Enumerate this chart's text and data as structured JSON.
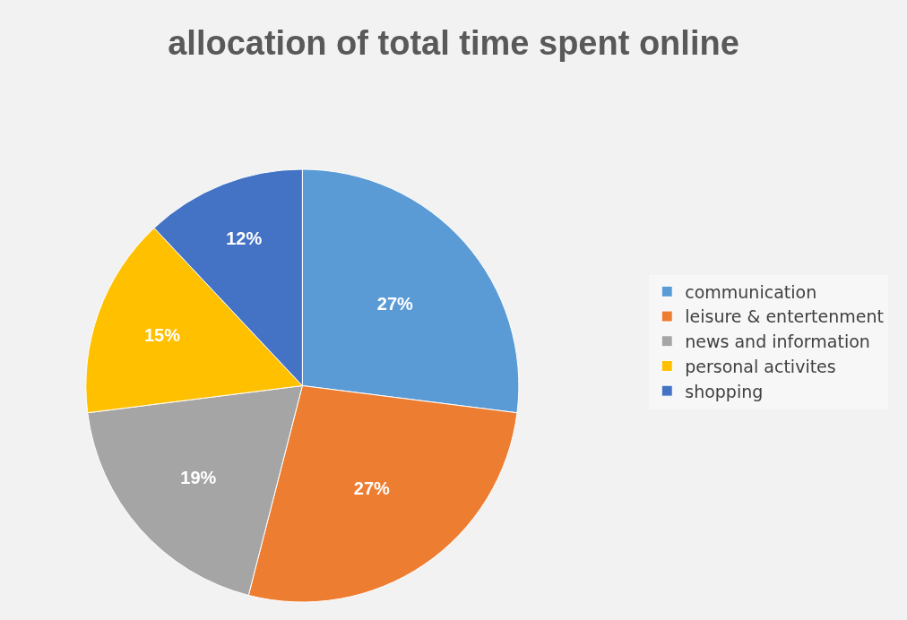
{
  "chart_data": {
    "type": "pie",
    "title": "allocation of total time spent online",
    "categories": [
      "communication",
      "leisure & entertenment",
      "news and information",
      "personal activites",
      "shopping"
    ],
    "values": [
      27,
      27,
      19,
      15,
      12
    ],
    "colors": [
      "#5b9bd5",
      "#ed7d31",
      "#a5a5a5",
      "#ffc000",
      "#4472c4"
    ],
    "value_labels": [
      "27%",
      "27%",
      "19%",
      "15%",
      "12%"
    ],
    "legend": "right"
  }
}
